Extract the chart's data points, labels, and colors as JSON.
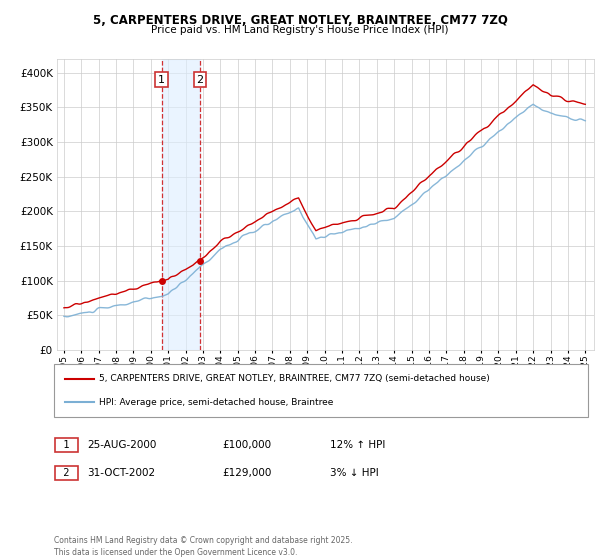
{
  "title": "5, CARPENTERS DRIVE, GREAT NOTLEY, BRAINTREE, CM77 7ZQ",
  "subtitle": "Price paid vs. HM Land Registry's House Price Index (HPI)",
  "sale1_date": "25-AUG-2000",
  "sale1_price": 100000,
  "sale1_hpi": "12% ↑ HPI",
  "sale2_date": "31-OCT-2002",
  "sale2_price": 129000,
  "sale2_hpi": "3% ↓ HPI",
  "legend_property": "5, CARPENTERS DRIVE, GREAT NOTLEY, BRAINTREE, CM77 7ZQ (semi-detached house)",
  "legend_hpi": "HPI: Average price, semi-detached house, Braintree",
  "footer": "Contains HM Land Registry data © Crown copyright and database right 2025.\nThis data is licensed under the Open Government Licence v3.0.",
  "hpi_color": "#7bafd4",
  "property_color": "#cc0000",
  "shade_color": "#ddeeff",
  "background_color": "#ffffff",
  "grid_color": "#cccccc",
  "ylim": [
    0,
    420000
  ],
  "yticks": [
    0,
    50000,
    100000,
    150000,
    200000,
    250000,
    300000,
    350000,
    400000
  ],
  "sale1_x": 2000.625,
  "sale2_x": 2002.833
}
